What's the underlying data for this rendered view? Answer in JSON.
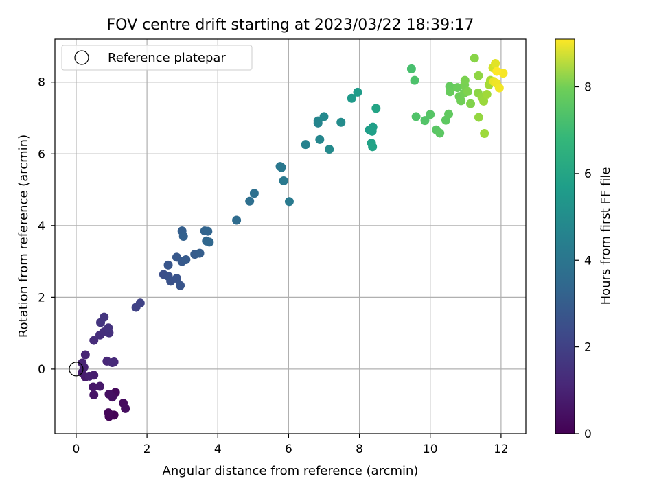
{
  "chart_data": {
    "type": "scatter",
    "title": "FOV centre drift starting at 2023/03/22 18:39:17",
    "xlabel": "Angular distance from reference (arcmin)",
    "ylabel": "Rotation from reference (arcmin)",
    "xlim": [
      -0.6,
      12.7
    ],
    "ylim": [
      -1.8,
      9.2
    ],
    "xticks": [
      0,
      2,
      4,
      6,
      8,
      10,
      12
    ],
    "yticks": [
      0,
      2,
      4,
      6,
      8
    ],
    "grid": true,
    "legend": {
      "position": "top-left",
      "entries": [
        "Reference platepar"
      ]
    },
    "reference_point": {
      "x": 0,
      "y": 0,
      "label": "Reference platepar"
    },
    "colorbar": {
      "label": "Hours from first FF file",
      "min": 0,
      "max": 9.1,
      "ticks": [
        0,
        2,
        4,
        6,
        8
      ],
      "colormap": "viridis"
    },
    "points": [
      {
        "x": 1.07,
        "y": -1.28,
        "c": 0.05
      },
      {
        "x": 0.93,
        "y": -1.32,
        "c": 0.1
      },
      {
        "x": 0.91,
        "y": -1.22,
        "c": 0.15
      },
      {
        "x": 1.11,
        "y": -0.65,
        "c": 0.2
      },
      {
        "x": 1.33,
        "y": -0.95,
        "c": 0.25
      },
      {
        "x": 1.39,
        "y": -1.1,
        "c": 0.3
      },
      {
        "x": 1.02,
        "y": -0.78,
        "c": 0.35
      },
      {
        "x": 0.93,
        "y": -0.7,
        "c": 0.4
      },
      {
        "x": 0.5,
        "y": -0.72,
        "c": 0.5
      },
      {
        "x": 0.48,
        "y": -0.5,
        "c": 0.55
      },
      {
        "x": 0.67,
        "y": -0.48,
        "c": 0.6
      },
      {
        "x": 0.26,
        "y": -0.22,
        "c": 0.65
      },
      {
        "x": 0.17,
        "y": -0.1,
        "c": 0.7
      },
      {
        "x": 0.5,
        "y": -0.17,
        "c": 0.75
      },
      {
        "x": 0.37,
        "y": -0.2,
        "c": 0.8
      },
      {
        "x": 0.22,
        "y": 0.05,
        "c": 0.85
      },
      {
        "x": 0.17,
        "y": 0.17,
        "c": 0.9
      },
      {
        "x": 0.26,
        "y": 0.4,
        "c": 0.95
      },
      {
        "x": 0.87,
        "y": 0.22,
        "c": 1.0
      },
      {
        "x": 1.07,
        "y": 0.2,
        "c": 1.05
      },
      {
        "x": 1.02,
        "y": 0.18,
        "c": 1.1
      },
      {
        "x": 0.5,
        "y": 0.8,
        "c": 1.15
      },
      {
        "x": 0.67,
        "y": 0.95,
        "c": 1.2
      },
      {
        "x": 0.79,
        "y": 1.04,
        "c": 1.25
      },
      {
        "x": 0.93,
        "y": 1.01,
        "c": 1.3
      },
      {
        "x": 0.91,
        "y": 1.15,
        "c": 1.35
      },
      {
        "x": 0.69,
        "y": 1.3,
        "c": 1.4
      },
      {
        "x": 0.79,
        "y": 1.45,
        "c": 1.45
      },
      {
        "x": 1.69,
        "y": 1.72,
        "c": 1.8
      },
      {
        "x": 1.81,
        "y": 1.84,
        "c": 1.85
      },
      {
        "x": 2.47,
        "y": 2.64,
        "c": 2.2
      },
      {
        "x": 2.6,
        "y": 2.59,
        "c": 2.25
      },
      {
        "x": 2.67,
        "y": 2.45,
        "c": 2.3
      },
      {
        "x": 2.84,
        "y": 2.53,
        "c": 2.35
      },
      {
        "x": 2.94,
        "y": 2.33,
        "c": 2.4
      },
      {
        "x": 2.6,
        "y": 2.9,
        "c": 2.45
      },
      {
        "x": 2.84,
        "y": 3.12,
        "c": 2.5
      },
      {
        "x": 2.99,
        "y": 3.0,
        "c": 2.55
      },
      {
        "x": 3.1,
        "y": 3.05,
        "c": 2.6
      },
      {
        "x": 3.35,
        "y": 3.2,
        "c": 2.65
      },
      {
        "x": 3.49,
        "y": 3.23,
        "c": 2.7
      },
      {
        "x": 2.99,
        "y": 3.85,
        "c": 2.75
      },
      {
        "x": 3.03,
        "y": 3.7,
        "c": 2.8
      },
      {
        "x": 3.63,
        "y": 3.85,
        "c": 2.9
      },
      {
        "x": 3.72,
        "y": 3.84,
        "c": 2.95
      },
      {
        "x": 3.68,
        "y": 3.57,
        "c": 3.0
      },
      {
        "x": 3.76,
        "y": 3.54,
        "c": 3.05
      },
      {
        "x": 4.53,
        "y": 4.15,
        "c": 3.2
      },
      {
        "x": 4.9,
        "y": 4.68,
        "c": 3.3
      },
      {
        "x": 5.03,
        "y": 4.9,
        "c": 3.35
      },
      {
        "x": 5.76,
        "y": 5.65,
        "c": 3.6
      },
      {
        "x": 5.8,
        "y": 5.62,
        "c": 3.65
      },
      {
        "x": 5.86,
        "y": 5.25,
        "c": 3.7
      },
      {
        "x": 6.02,
        "y": 4.67,
        "c": 3.75
      },
      {
        "x": 6.48,
        "y": 6.26,
        "c": 4.0
      },
      {
        "x": 6.83,
        "y": 6.86,
        "c": 4.1
      },
      {
        "x": 6.83,
        "y": 6.92,
        "c": 4.15
      },
      {
        "x": 6.88,
        "y": 6.4,
        "c": 4.2
      },
      {
        "x": 7.0,
        "y": 7.04,
        "c": 4.3
      },
      {
        "x": 7.15,
        "y": 6.13,
        "c": 4.35
      },
      {
        "x": 7.48,
        "y": 6.88,
        "c": 4.4
      },
      {
        "x": 7.78,
        "y": 7.55,
        "c": 4.9
      },
      {
        "x": 7.95,
        "y": 7.72,
        "c": 5.0
      },
      {
        "x": 8.28,
        "y": 6.67,
        "c": 5.05
      },
      {
        "x": 8.38,
        "y": 6.75,
        "c": 5.1
      },
      {
        "x": 8.36,
        "y": 6.63,
        "c": 5.15
      },
      {
        "x": 8.34,
        "y": 6.3,
        "c": 5.2
      },
      {
        "x": 8.37,
        "y": 6.2,
        "c": 5.25
      },
      {
        "x": 8.47,
        "y": 7.27,
        "c": 5.3
      },
      {
        "x": 9.47,
        "y": 8.37,
        "c": 6.4
      },
      {
        "x": 9.56,
        "y": 8.05,
        "c": 6.5
      },
      {
        "x": 9.6,
        "y": 7.04,
        "c": 6.55
      },
      {
        "x": 9.85,
        "y": 6.93,
        "c": 6.6
      },
      {
        "x": 10.0,
        "y": 7.1,
        "c": 6.65
      },
      {
        "x": 10.17,
        "y": 6.67,
        "c": 6.7
      },
      {
        "x": 10.27,
        "y": 6.58,
        "c": 6.75
      },
      {
        "x": 10.44,
        "y": 6.94,
        "c": 6.8
      },
      {
        "x": 10.52,
        "y": 7.11,
        "c": 6.85
      },
      {
        "x": 10.55,
        "y": 7.88,
        "c": 6.9
      },
      {
        "x": 10.56,
        "y": 7.73,
        "c": 6.95
      },
      {
        "x": 10.77,
        "y": 7.85,
        "c": 7.0
      },
      {
        "x": 10.82,
        "y": 7.6,
        "c": 7.05
      },
      {
        "x": 10.87,
        "y": 7.48,
        "c": 7.1
      },
      {
        "x": 10.96,
        "y": 7.69,
        "c": 7.15
      },
      {
        "x": 10.97,
        "y": 7.92,
        "c": 7.2
      },
      {
        "x": 10.98,
        "y": 8.05,
        "c": 7.25
      },
      {
        "x": 11.06,
        "y": 7.74,
        "c": 7.3
      },
      {
        "x": 11.14,
        "y": 7.4,
        "c": 7.35
      },
      {
        "x": 11.25,
        "y": 8.67,
        "c": 7.45
      },
      {
        "x": 11.35,
        "y": 7.7,
        "c": 7.5
      },
      {
        "x": 11.36,
        "y": 8.18,
        "c": 7.55
      },
      {
        "x": 11.37,
        "y": 7.02,
        "c": 7.6
      },
      {
        "x": 11.46,
        "y": 7.58,
        "c": 7.65
      },
      {
        "x": 11.51,
        "y": 7.47,
        "c": 7.7
      },
      {
        "x": 11.53,
        "y": 6.57,
        "c": 7.75
      },
      {
        "x": 11.6,
        "y": 7.66,
        "c": 7.8
      },
      {
        "x": 11.66,
        "y": 7.93,
        "c": 7.85
      },
      {
        "x": 11.7,
        "y": 8.05,
        "c": 7.9
      },
      {
        "x": 11.77,
        "y": 8.4,
        "c": 8.5
      },
      {
        "x": 11.84,
        "y": 8.52,
        "c": 8.7
      },
      {
        "x": 11.79,
        "y": 8.02,
        "c": 8.8
      },
      {
        "x": 11.87,
        "y": 7.97,
        "c": 8.9
      },
      {
        "x": 11.95,
        "y": 7.84,
        "c": 8.95
      },
      {
        "x": 12.06,
        "y": 8.25,
        "c": 9.0
      },
      {
        "x": 11.88,
        "y": 8.3,
        "c": 9.1
      }
    ]
  }
}
